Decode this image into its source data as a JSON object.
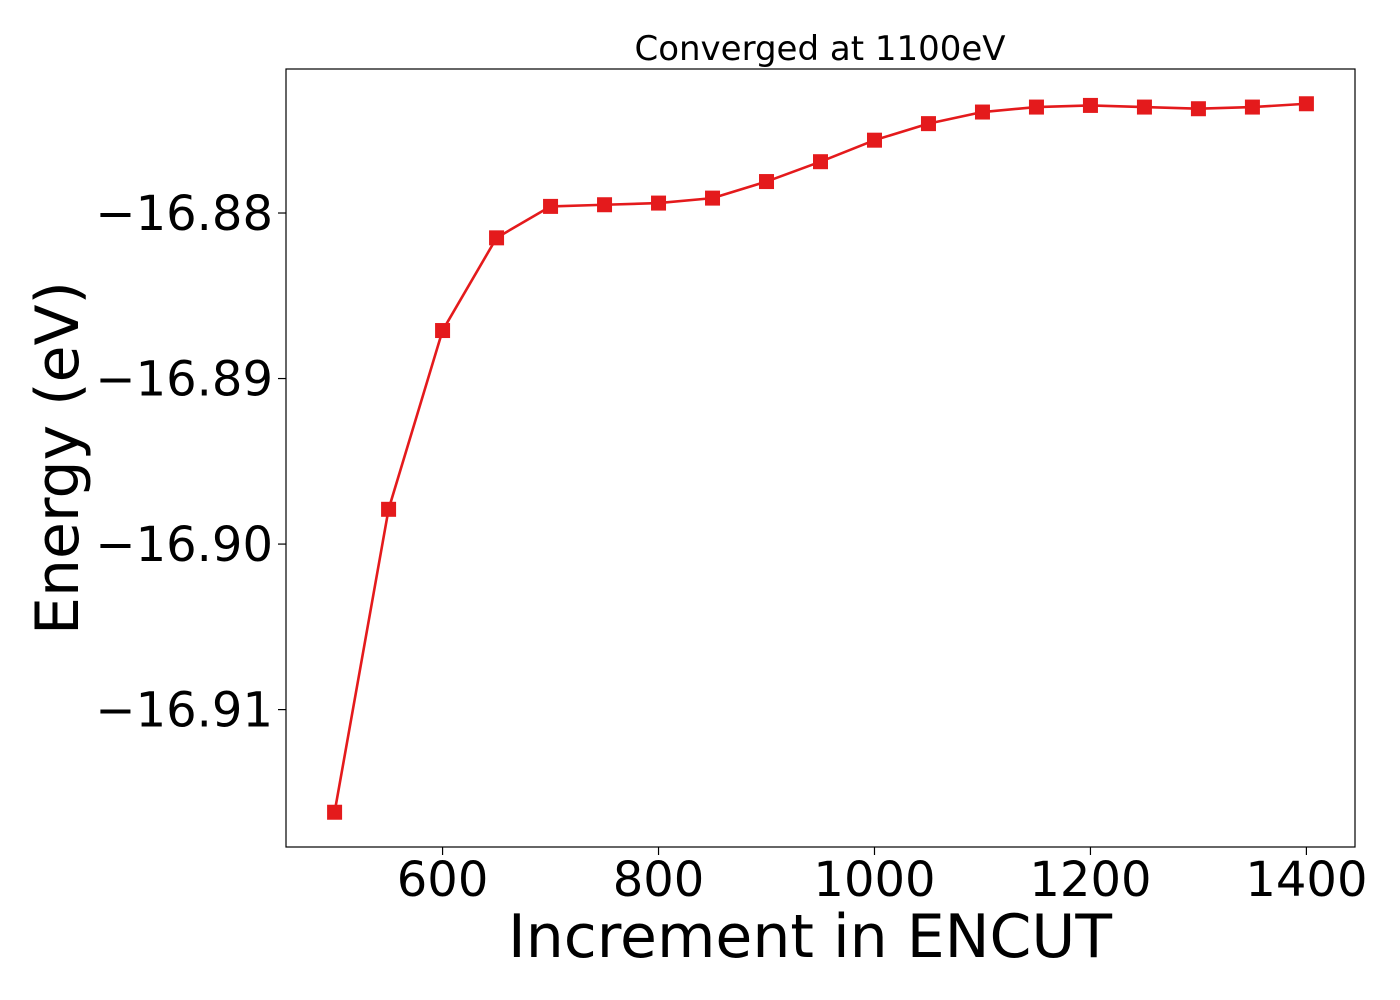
{
  "chart_data": {
    "type": "line",
    "title": "Converged at 1100eV",
    "xlabel": "Increment in ENCUT",
    "ylabel": "Energy (eV)",
    "xlim": [
      455,
      1445
    ],
    "ylim": [
      -16.9183,
      -16.8713
    ],
    "xticks": [
      600,
      800,
      1000,
      1200,
      1400
    ],
    "xtick_labels": [
      "600",
      "800",
      "1000",
      "1200",
      "1400"
    ],
    "yticks": [
      -16.88,
      -16.89,
      -16.9,
      -16.91
    ],
    "ytick_labels": [
      "−16.88",
      "−16.89",
      "−16.90",
      "−16.91"
    ],
    "grid": false,
    "marker": "square",
    "color": "#e41a1c",
    "series": [
      {
        "x": [
          500,
          550,
          600,
          650,
          700,
          750,
          800,
          850,
          900,
          950,
          1000,
          1050,
          1100,
          1150,
          1200,
          1250,
          1300,
          1350,
          1400
        ],
        "y": [
          -16.9162,
          -16.8979,
          -16.8871,
          -16.8815,
          -16.8796,
          -16.8795,
          -16.8794,
          -16.8791,
          -16.8781,
          -16.8769,
          -16.8756,
          -16.8746,
          -16.8739,
          -16.8736,
          -16.8735,
          -16.8736,
          -16.8737,
          -16.8736,
          -16.8734
        ]
      }
    ]
  }
}
